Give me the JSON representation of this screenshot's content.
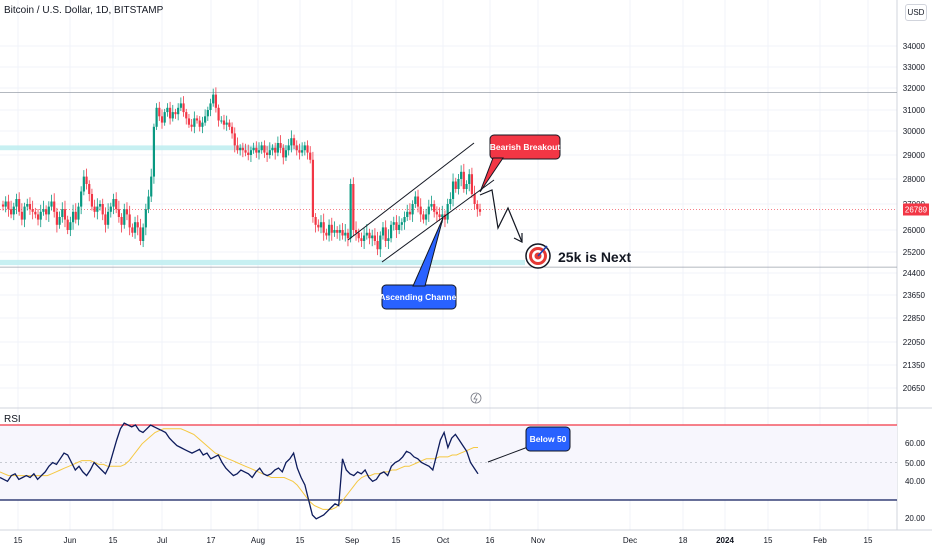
{
  "header": {
    "symbol": "Bitcoin / U.S. Dollar, 1D, BITSTAMP",
    "currency": "USD"
  },
  "indicator": {
    "name": "RSI"
  },
  "colors": {
    "up": "#089981",
    "down": "#f23645",
    "rsi_line": "#0d1b5c",
    "rsi_ma": "#f5c842",
    "zone": "#b9ecef",
    "callout_red": "#f23645",
    "callout_blue": "#2962ff",
    "band_upper": "#f23645",
    "band_lower": "#0d1b5c"
  },
  "annotations": {
    "bearish_breakout": "Bearish Breakout",
    "ascending_channel": "Ascending Channel",
    "target": "25k is Next",
    "rsi_note": "Below 50"
  },
  "last_price": "26789",
  "chart_data": {
    "type": "candlestick",
    "price_axis_labels": [
      "34000",
      "33000",
      "32000",
      "31000",
      "30000",
      "29000",
      "28000",
      "27000",
      "26000",
      "25200",
      "24400",
      "23650",
      "22850",
      "22050",
      "21350",
      "20650"
    ],
    "time_axis_labels": [
      "15",
      "Jun",
      "15",
      "Jul",
      "17",
      "Aug",
      "15",
      "Sep",
      "15",
      "Oct",
      "16",
      "Nov",
      "Dec",
      "18",
      "2024",
      "15",
      "Feb",
      "15"
    ],
    "rsi_axis_labels": [
      "60.00",
      "50.00",
      "40.00",
      "20.00"
    ],
    "support_zone": [
      24700,
      24900
    ],
    "resistance_zone": [
      29200,
      29400
    ],
    "resistance_line": 31800,
    "rsi_levels": {
      "upper": 70,
      "middle": 50,
      "lower": 30
    },
    "closes": [
      26900,
      27100,
      26800,
      26600,
      26900,
      27200,
      26700,
      26400,
      26900,
      27000,
      26800,
      26700,
      26600,
      26400,
      26700,
      26800,
      26600,
      26900,
      27100,
      26700,
      26200,
      26500,
      26800,
      26400,
      26000,
      26300,
      26700,
      26400,
      26900,
      27500,
      28100,
      27800,
      27400,
      26900,
      26700,
      26900,
      27000,
      26600,
      26200,
      26700,
      26900,
      27200,
      26800,
      26500,
      26200,
      26800,
      26600,
      26100,
      25900,
      26300,
      26100,
      25600,
      26100,
      26800,
      27300,
      28100,
      30200,
      31100,
      30700,
      30400,
      30900,
      31100,
      30600,
      30900,
      30800,
      31100,
      31300,
      30900,
      30600,
      30300,
      30200,
      30600,
      30500,
      30200,
      30400,
      30700,
      31000,
      31300,
      31700,
      31100,
      30500,
      30500,
      30300,
      30400,
      30200,
      29900,
      29400,
      29200,
      29300,
      29200,
      29100,
      29000,
      29200,
      29300,
      29100,
      29200,
      29400,
      29100,
      29000,
      29200,
      29300,
      29100,
      29500,
      29300,
      28900,
      29200,
      29400,
      29700,
      29400,
      29200,
      29100,
      29200,
      29400,
      29100,
      28800,
      26500,
      26200,
      26100,
      26300,
      25900,
      25800,
      26200,
      25900,
      26000,
      25900,
      26000,
      25800,
      25900,
      25700,
      27800,
      26000,
      25900,
      25700,
      25600,
      25800,
      25900,
      25700,
      25800,
      25600,
      25300,
      25800,
      26100,
      25600,
      25700,
      26200,
      26300,
      26000,
      26200,
      26300,
      26500,
      26700,
      26600,
      27000,
      27300,
      26900,
      26600,
      26400,
      26600,
      26900,
      27000,
      26700,
      26600,
      26500,
      26600,
      26400,
      27000,
      27200,
      27900,
      27600,
      28000,
      28300,
      27600,
      27800,
      28200,
      27400,
      27000,
      26800,
      26700
    ],
    "rsi_series": [
      42,
      41,
      40,
      43,
      44,
      41,
      42,
      43,
      42,
      44,
      41,
      43,
      45,
      48,
      50,
      49,
      52,
      55,
      54,
      50,
      46,
      48,
      45,
      43,
      46,
      50,
      48,
      46,
      44,
      48,
      55,
      62,
      68,
      71,
      70,
      69,
      70,
      67,
      66,
      68,
      70,
      69,
      68,
      67,
      66,
      63,
      61,
      59,
      58,
      57,
      56,
      55,
      56,
      57,
      54,
      55,
      52,
      53,
      54,
      50,
      47,
      45,
      43,
      44,
      46,
      45,
      44,
      42,
      45,
      47,
      44,
      43,
      44,
      46,
      47,
      45,
      50,
      52,
      55,
      47,
      42,
      38,
      30,
      22,
      20,
      21,
      22,
      24,
      26,
      28,
      27,
      52,
      46,
      44,
      43,
      45,
      44,
      46,
      42,
      40,
      41,
      44,
      45,
      43,
      48,
      50,
      51,
      53,
      56,
      55,
      53,
      52,
      50,
      49,
      48,
      46,
      54,
      62,
      66,
      58,
      63,
      65,
      62,
      59,
      56,
      50,
      47,
      44
    ],
    "rsi_ma_series": [
      45,
      44,
      43,
      43,
      43,
      43,
      43,
      43,
      43,
      43,
      43,
      43,
      44,
      45,
      46,
      47,
      48,
      49,
      50,
      51,
      51,
      51,
      50,
      49,
      49,
      48,
      48,
      48,
      48,
      49,
      51,
      54,
      57,
      60,
      62,
      64,
      66,
      67,
      68,
      68,
      68,
      68,
      68,
      67,
      66,
      65,
      63,
      61,
      59,
      57,
      55,
      54,
      53,
      52,
      51,
      50,
      49,
      48,
      47,
      46,
      45,
      44,
      43,
      42,
      42,
      42,
      42,
      41,
      40,
      38,
      35,
      32,
      29,
      27,
      26,
      25,
      25,
      25,
      26,
      28,
      31,
      34,
      37,
      40,
      42,
      43,
      43,
      44,
      44,
      45,
      45,
      46,
      46,
      47,
      48,
      48,
      49,
      50,
      51,
      52,
      52,
      52,
      53,
      53,
      53,
      54,
      54,
      55,
      56,
      57,
      58,
      58
    ]
  }
}
